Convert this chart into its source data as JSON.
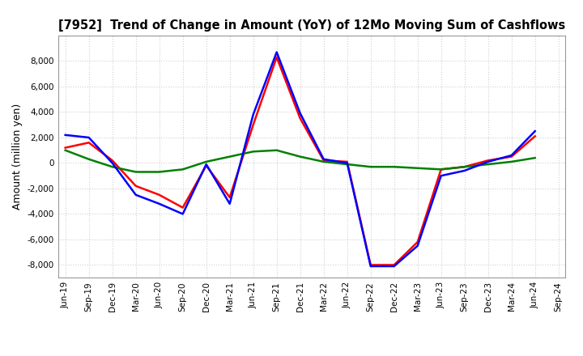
{
  "title": "[7952]  Trend of Change in Amount (YoY) of 12Mo Moving Sum of Cashflows",
  "ylabel": "Amount (million yen)",
  "ylim": [
    -9000,
    10000
  ],
  "yticks": [
    -8000,
    -6000,
    -4000,
    -2000,
    0,
    2000,
    4000,
    6000,
    8000
  ],
  "x_labels": [
    "Jun-19",
    "Sep-19",
    "Dec-19",
    "Mar-20",
    "Jun-20",
    "Sep-20",
    "Dec-20",
    "Mar-21",
    "Jun-21",
    "Sep-21",
    "Dec-21",
    "Mar-22",
    "Jun-22",
    "Sep-22",
    "Dec-22",
    "Mar-23",
    "Jun-23",
    "Sep-23",
    "Dec-23",
    "Mar-24",
    "Jun-24",
    "Sep-24"
  ],
  "operating": [
    1200,
    1600,
    200,
    -1800,
    -2500,
    -3500,
    -200,
    -2700,
    3000,
    8300,
    3500,
    200,
    100,
    -8000,
    -8000,
    -6200,
    -500,
    -300,
    200,
    500,
    2100,
    null
  ],
  "investing": [
    1000,
    300,
    -300,
    -700,
    -700,
    -500,
    100,
    500,
    900,
    1000,
    500,
    100,
    -100,
    -300,
    -300,
    -400,
    -500,
    -300,
    -100,
    100,
    400,
    null
  ],
  "free": [
    2200,
    2000,
    0,
    -2500,
    -3200,
    -4000,
    -100,
    -3200,
    3800,
    8700,
    3900,
    300,
    0,
    -8100,
    -8100,
    -6500,
    -1000,
    -600,
    100,
    600,
    2500,
    null
  ],
  "operating_color": "#ff0000",
  "investing_color": "#008000",
  "free_color": "#0000ff",
  "background_color": "#ffffff",
  "grid_color": "#d0d0d0"
}
